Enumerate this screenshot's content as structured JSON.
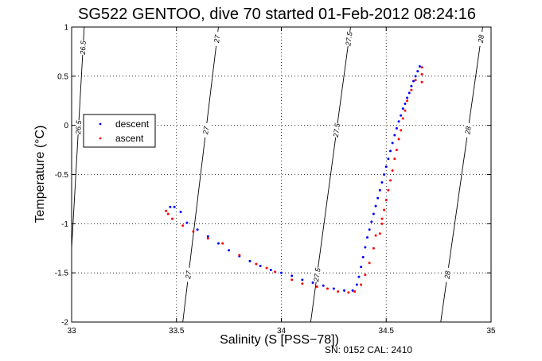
{
  "chart_data": {
    "type": "scatter",
    "title": "SG522 GENTOO, dive 70 started 01-Feb-2012 08:24:16",
    "xlabel": "Salinity (S [PSS−78])",
    "ylabel": "Temperature (°C)",
    "xlim": [
      33,
      35
    ],
    "ylim": [
      -2,
      1
    ],
    "x_ticks": [
      "33",
      "33.5",
      "34",
      "34.5",
      "35"
    ],
    "y_ticks": [
      "-2",
      "-1.5",
      "-1",
      "-0.5",
      "0",
      "0.5",
      "1"
    ],
    "grid": true,
    "legend_position": "left",
    "series": [
      {
        "name": "descent",
        "color": "#0000ff",
        "points": [
          [
            34.66,
            0.6
          ],
          [
            34.65,
            0.55
          ],
          [
            34.64,
            0.5
          ],
          [
            34.63,
            0.45
          ],
          [
            34.62,
            0.4
          ],
          [
            34.61,
            0.33
          ],
          [
            34.6,
            0.28
          ],
          [
            34.59,
            0.22
          ],
          [
            34.58,
            0.17
          ],
          [
            34.57,
            0.1
          ],
          [
            34.56,
            0.04
          ],
          [
            34.55,
            -0.03
          ],
          [
            34.54,
            -0.1
          ],
          [
            34.53,
            -0.18
          ],
          [
            34.52,
            -0.26
          ],
          [
            34.51,
            -0.34
          ],
          [
            34.5,
            -0.42
          ],
          [
            34.49,
            -0.5
          ],
          [
            34.48,
            -0.58
          ],
          [
            34.47,
            -0.66
          ],
          [
            34.46,
            -0.74
          ],
          [
            34.45,
            -0.82
          ],
          [
            34.44,
            -0.9
          ],
          [
            34.43,
            -0.98
          ],
          [
            34.42,
            -1.06
          ],
          [
            34.41,
            -1.14
          ],
          [
            34.4,
            -1.24
          ],
          [
            34.39,
            -1.34
          ],
          [
            34.38,
            -1.44
          ],
          [
            34.37,
            -1.54
          ],
          [
            34.36,
            -1.62
          ],
          [
            34.34,
            -1.68
          ],
          [
            34.3,
            -1.68
          ],
          [
            34.25,
            -1.66
          ],
          [
            34.2,
            -1.63
          ],
          [
            34.15,
            -1.6
          ],
          [
            34.1,
            -1.57
          ],
          [
            34.05,
            -1.53
          ],
          [
            34.0,
            -1.5
          ],
          [
            33.95,
            -1.47
          ],
          [
            33.9,
            -1.43
          ],
          [
            33.85,
            -1.38
          ],
          [
            33.8,
            -1.33
          ],
          [
            33.75,
            -1.27
          ],
          [
            33.7,
            -1.2
          ],
          [
            33.65,
            -1.13
          ],
          [
            33.6,
            -1.06
          ],
          [
            33.55,
            -0.99
          ],
          [
            33.52,
            -0.88
          ],
          [
            33.49,
            -0.83
          ],
          [
            33.47,
            -0.83
          ]
        ]
      },
      {
        "name": "ascent",
        "color": "#ff0000",
        "points": [
          [
            34.67,
            0.59
          ],
          [
            34.67,
            0.52
          ],
          [
            34.67,
            0.44
          ],
          [
            34.64,
            0.46
          ],
          [
            34.62,
            0.36
          ],
          [
            34.6,
            0.25
          ],
          [
            34.59,
            0.15
          ],
          [
            34.58,
            0.07
          ],
          [
            34.57,
            -0.05
          ],
          [
            34.56,
            -0.14
          ],
          [
            34.55,
            -0.25
          ],
          [
            34.54,
            -0.34
          ],
          [
            34.53,
            -0.46
          ],
          [
            34.52,
            -0.56
          ],
          [
            34.51,
            -0.66
          ],
          [
            34.5,
            -0.76
          ],
          [
            34.49,
            -0.86
          ],
          [
            34.48,
            -0.95
          ],
          [
            34.48,
            -1.0
          ],
          [
            34.47,
            -1.1
          ],
          [
            34.45,
            -1.12
          ],
          [
            34.44,
            -1.25
          ],
          [
            34.42,
            -1.4
          ],
          [
            34.4,
            -1.52
          ],
          [
            34.38,
            -1.62
          ],
          [
            34.35,
            -1.69
          ],
          [
            34.32,
            -1.7
          ],
          [
            34.27,
            -1.69
          ],
          [
            34.22,
            -1.66
          ],
          [
            34.17,
            -1.64
          ],
          [
            34.1,
            -1.61
          ],
          [
            34.05,
            -1.57
          ],
          [
            33.97,
            -1.49
          ],
          [
            33.93,
            -1.45
          ],
          [
            33.88,
            -1.41
          ],
          [
            33.8,
            -1.32
          ],
          [
            33.72,
            -1.2
          ],
          [
            33.65,
            -1.15
          ],
          [
            33.58,
            -1.08
          ],
          [
            33.53,
            -1.02
          ],
          [
            33.48,
            -0.95
          ],
          [
            33.46,
            -0.9
          ],
          [
            33.45,
            -0.87
          ]
        ]
      }
    ],
    "isopycnals": [
      {
        "label": "26.5",
        "s_at_1": 33.06,
        "s_at_m2": 32.98
      },
      {
        "label": "27",
        "s_at_1": 33.7,
        "s_at_m2": 33.53
      },
      {
        "label": "27.5",
        "s_at_1": 34.33,
        "s_at_m2": 34.14
      },
      {
        "label": "28",
        "s_at_1": 34.96,
        "s_at_m2": 34.76
      }
    ]
  },
  "footer": {
    "text": "SN: 0152  CAL: 2410"
  }
}
